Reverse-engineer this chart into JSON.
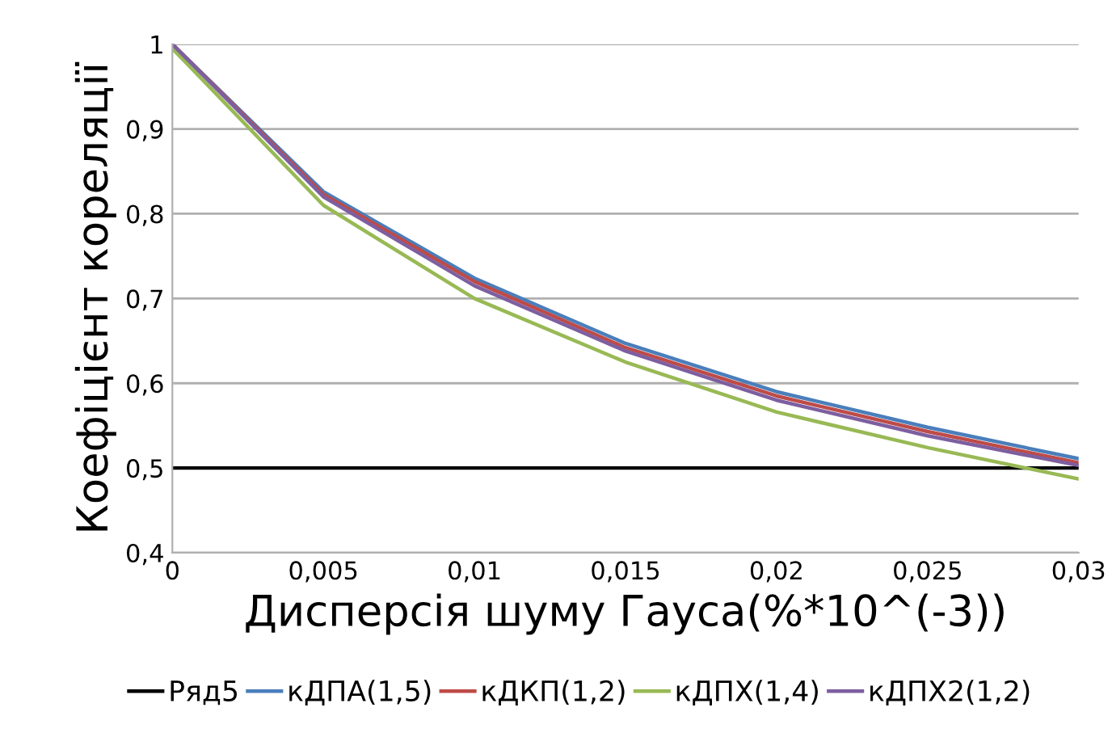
{
  "chart_data": {
    "type": "line",
    "xlabel": "Дисперсія шуму Гауса(%*10^(-3))",
    "ylabel": "Коефіцієнт кореляції",
    "x": [
      0,
      0.005,
      0.01,
      0.015,
      0.02,
      0.025,
      0.03
    ],
    "series": [
      {
        "name": "Ряд5",
        "color": "#000000",
        "values": [
          0.5,
          0.5,
          0.5,
          0.5,
          0.5,
          0.5,
          0.5
        ]
      },
      {
        "name": "кДПА(1,5)",
        "color": "#4a7ebb",
        "values": [
          1,
          0.826,
          0.724,
          0.647,
          0.59,
          0.548,
          0.511
        ]
      },
      {
        "name": "кДКП(1,2)",
        "color": "#be4b48",
        "values": [
          1,
          0.823,
          0.72,
          0.642,
          0.585,
          0.543,
          0.506
        ]
      },
      {
        "name": "кДПХ(1,4)",
        "color": "#98b954",
        "values": [
          0.995,
          0.81,
          0.7,
          0.625,
          0.566,
          0.524,
          0.487
        ]
      },
      {
        "name": "кДПХ2(1,2)",
        "color": "#7d5fa0",
        "values": [
          1,
          0.82,
          0.715,
          0.638,
          0.58,
          0.538,
          0.503
        ]
      }
    ],
    "xlim": [
      0,
      0.03
    ],
    "ylim": [
      0.4,
      1
    ],
    "xticks": [
      0,
      {
        "value": 0.005,
        "label": "0,005"
      },
      {
        "value": 0.01,
        "label": "0,01"
      },
      {
        "value": 0.015,
        "label": "0,015"
      },
      {
        "value": 0.02,
        "label": "0,02"
      },
      {
        "value": 0.025,
        "label": "0,025"
      },
      {
        "value": 0.03,
        "label": "0,03"
      }
    ],
    "yticks": [
      {
        "value": 0.4,
        "label": "0,4"
      },
      {
        "value": 0.5,
        "label": "0,5"
      },
      {
        "value": 0.6,
        "label": "0,6"
      },
      {
        "value": 0.7,
        "label": "0,7"
      },
      {
        "value": 0.8,
        "label": "0,8"
      },
      {
        "value": 0.9,
        "label": "0,9"
      },
      1
    ],
    "grid": "y",
    "legend": "bottom",
    "marker": "none",
    "line_style": "solid"
  }
}
